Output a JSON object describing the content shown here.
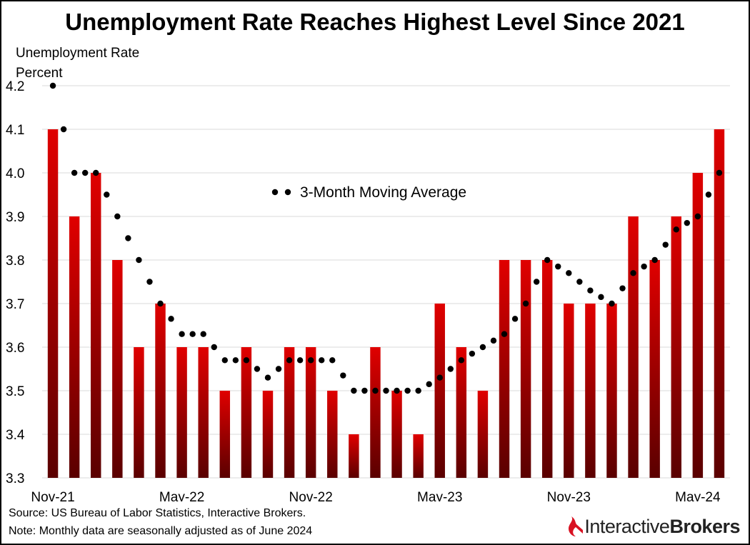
{
  "chart_data": {
    "type": "bar",
    "title": "Unemployment Rate Reaches Highest Level Since 2021",
    "ylabel_line1": "Unemployment Rate",
    "ylabel_line2": "Percent",
    "ylim": [
      3.3,
      4.2
    ],
    "yticks": [
      "3.3",
      "3.4",
      "3.5",
      "3.6",
      "3.7",
      "3.8",
      "3.9",
      "4.0",
      "4.1",
      "4.2"
    ],
    "grid": true,
    "x_tick_labels": [
      {
        "index": 0,
        "label": "Nov-21"
      },
      {
        "index": 6,
        "label": "May-22"
      },
      {
        "index": 12,
        "label": "Nov-22"
      },
      {
        "index": 18,
        "label": "May-23"
      },
      {
        "index": 24,
        "label": "Nov-23"
      },
      {
        "index": 30,
        "label": "May-24"
      }
    ],
    "categories": [
      "Nov-21",
      "Dec-21",
      "Jan-22",
      "Feb-22",
      "Mar-22",
      "Apr-22",
      "May-22",
      "Jun-22",
      "Jul-22",
      "Aug-22",
      "Sep-22",
      "Oct-22",
      "Nov-22",
      "Dec-22",
      "Jan-23",
      "Feb-23",
      "Mar-23",
      "Apr-23",
      "May-23",
      "Jun-23",
      "Jul-23",
      "Aug-23",
      "Sep-23",
      "Oct-23",
      "Nov-23",
      "Dec-23",
      "Jan-24",
      "Feb-24",
      "Mar-24",
      "Apr-24",
      "May-24",
      "Jun-24"
    ],
    "values": [
      4.1,
      3.9,
      4.0,
      3.8,
      3.6,
      3.7,
      3.6,
      3.6,
      3.5,
      3.6,
      3.5,
      3.6,
      3.6,
      3.5,
      3.4,
      3.6,
      3.5,
      3.4,
      3.7,
      3.6,
      3.5,
      3.8,
      3.8,
      3.8,
      3.7,
      3.7,
      3.7,
      3.9,
      3.8,
      3.9,
      4.0,
      4.1
    ],
    "moving_average": {
      "name": "3-Month Moving Average",
      "values": [
        4.2,
        4.0,
        4.0,
        3.9,
        3.8,
        3.7,
        3.63,
        3.63,
        3.57,
        3.57,
        3.53,
        3.57,
        3.57,
        3.57,
        3.5,
        3.5,
        3.5,
        3.5,
        3.53,
        3.57,
        3.6,
        3.63,
        3.7,
        3.8,
        3.77,
        3.73,
        3.7,
        3.77,
        3.8,
        3.87,
        3.9,
        4.0
      ]
    },
    "colors": {
      "bar_top": "#e00000",
      "bar_bottom": "#5a0000",
      "dots": "#000000",
      "grid": "#d9d9d9"
    }
  },
  "footer": {
    "source": "Source: US Bureau of Labor Statistics, Interactive Brokers.",
    "note": "Note: Monthly data are seasonally adjusted as of June 2024"
  },
  "brand": {
    "part1": "Interactive",
    "part2": "Brokers",
    "logo_color": "#d81222"
  }
}
